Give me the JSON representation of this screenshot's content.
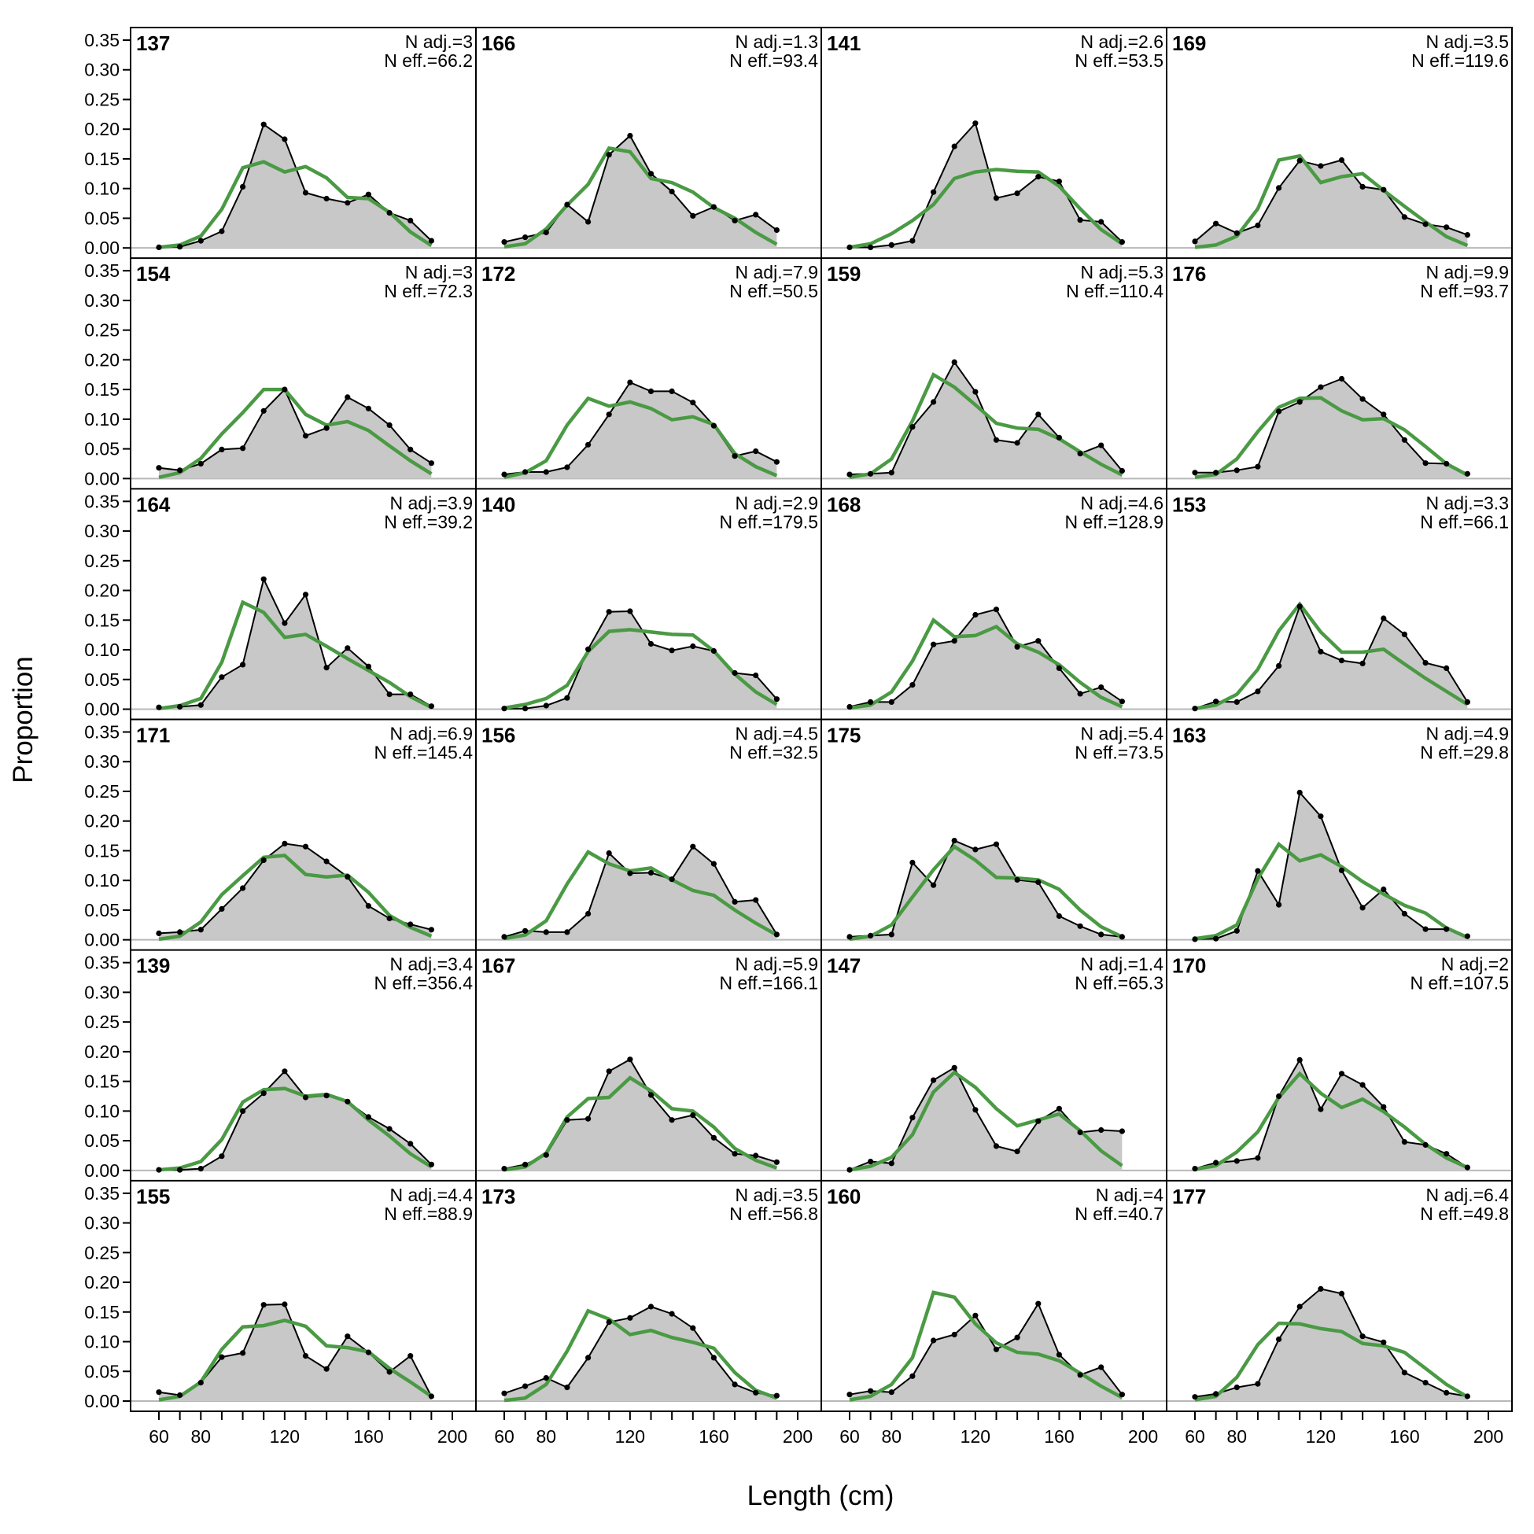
{
  "figure": {
    "xlabel": "Length (cm)",
    "ylabel": "Proportion",
    "observed_color": "#000000",
    "observed_fill": "#c8c8c8",
    "expected_color": "#4a9a44"
  },
  "chart_data": {
    "type": "area",
    "x": [
      60,
      70,
      80,
      90,
      100,
      110,
      120,
      130,
      140,
      150,
      160,
      170,
      180,
      190
    ],
    "xlim": [
      60,
      200
    ],
    "xticks": [
      60,
      80,
      120,
      160,
      200
    ],
    "ylim": [
      0,
      0.35
    ],
    "yticks": [
      "0.00",
      "0.05",
      "0.10",
      "0.15",
      "0.20",
      "0.25",
      "0.30",
      "0.35"
    ],
    "n_adj_label": "N adj.=",
    "n_eff_label": "N eff.=",
    "panels": [
      {
        "id": "137",
        "n_adj": "3",
        "n_eff": "66.2",
        "observed": [
          0.001,
          0.002,
          0.012,
          0.028,
          0.103,
          0.208,
          0.183,
          0.093,
          0.083,
          0.076,
          0.09,
          0.059,
          0.046,
          0.012
        ],
        "expected": [
          0.001,
          0.005,
          0.02,
          0.065,
          0.135,
          0.145,
          0.128,
          0.137,
          0.118,
          0.085,
          0.083,
          0.06,
          0.027,
          0.004
        ]
      },
      {
        "id": "154",
        "n_adj": "3",
        "n_eff": "72.3",
        "observed": [
          0.018,
          0.014,
          0.025,
          0.049,
          0.051,
          0.114,
          0.15,
          0.072,
          0.085,
          0.137,
          0.118,
          0.09,
          0.049,
          0.026
        ],
        "expected": [
          0.002,
          0.01,
          0.034,
          0.075,
          0.111,
          0.15,
          0.15,
          0.108,
          0.09,
          0.096,
          0.081,
          0.055,
          0.03,
          0.008
        ]
      },
      {
        "id": "164",
        "n_adj": "3.9",
        "n_eff": "39.2",
        "observed": [
          0.003,
          0.004,
          0.007,
          0.054,
          0.075,
          0.219,
          0.145,
          0.193,
          0.07,
          0.103,
          0.072,
          0.025,
          0.025,
          0.005
        ],
        "expected": [
          0.001,
          0.006,
          0.018,
          0.079,
          0.18,
          0.163,
          0.121,
          0.126,
          0.106,
          0.085,
          0.065,
          0.045,
          0.021,
          0.003
        ]
      },
      {
        "id": "171",
        "n_adj": "6.9",
        "n_eff": "145.4",
        "observed": [
          0.011,
          0.013,
          0.017,
          0.052,
          0.087,
          0.134,
          0.162,
          0.157,
          0.132,
          0.106,
          0.057,
          0.036,
          0.026,
          0.017
        ],
        "expected": [
          0.001,
          0.006,
          0.03,
          0.076,
          0.108,
          0.139,
          0.142,
          0.11,
          0.106,
          0.109,
          0.08,
          0.041,
          0.021,
          0.006
        ]
      },
      {
        "id": "139",
        "n_adj": "3.4",
        "n_eff": "356.4",
        "observed": [
          0.001,
          0.001,
          0.003,
          0.024,
          0.1,
          0.13,
          0.167,
          0.123,
          0.126,
          0.116,
          0.09,
          0.07,
          0.045,
          0.01
        ],
        "expected": [
          0.001,
          0.004,
          0.015,
          0.052,
          0.115,
          0.136,
          0.138,
          0.125,
          0.128,
          0.116,
          0.085,
          0.058,
          0.028,
          0.006
        ]
      },
      {
        "id": "155",
        "n_adj": "4.4",
        "n_eff": "88.9",
        "observed": [
          0.015,
          0.01,
          0.031,
          0.074,
          0.081,
          0.162,
          0.163,
          0.076,
          0.054,
          0.109,
          0.082,
          0.049,
          0.076,
          0.008
        ],
        "expected": [
          0.002,
          0.008,
          0.032,
          0.087,
          0.125,
          0.127,
          0.136,
          0.126,
          0.093,
          0.09,
          0.083,
          0.055,
          0.032,
          0.008
        ]
      },
      {
        "id": "166",
        "n_adj": "1.3",
        "n_eff": "93.4",
        "observed": [
          0.01,
          0.018,
          0.026,
          0.073,
          0.044,
          0.157,
          0.189,
          0.125,
          0.095,
          0.054,
          0.069,
          0.046,
          0.056,
          0.03
        ],
        "expected": [
          0.002,
          0.007,
          0.032,
          0.072,
          0.107,
          0.168,
          0.162,
          0.117,
          0.11,
          0.094,
          0.068,
          0.05,
          0.026,
          0.006
        ]
      },
      {
        "id": "172",
        "n_adj": "7.9",
        "n_eff": "50.5",
        "observed": [
          0.007,
          0.011,
          0.011,
          0.019,
          0.057,
          0.108,
          0.162,
          0.147,
          0.147,
          0.128,
          0.089,
          0.038,
          0.046,
          0.028
        ],
        "expected": [
          0.002,
          0.01,
          0.03,
          0.09,
          0.135,
          0.122,
          0.129,
          0.118,
          0.099,
          0.104,
          0.091,
          0.042,
          0.02,
          0.005
        ]
      },
      {
        "id": "140",
        "n_adj": "2.9",
        "n_eff": "179.5",
        "observed": [
          0.001,
          0.001,
          0.006,
          0.019,
          0.101,
          0.164,
          0.165,
          0.11,
          0.099,
          0.106,
          0.098,
          0.061,
          0.057,
          0.017
        ],
        "expected": [
          0.002,
          0.008,
          0.018,
          0.04,
          0.097,
          0.131,
          0.134,
          0.13,
          0.126,
          0.125,
          0.098,
          0.059,
          0.029,
          0.008
        ]
      },
      {
        "id": "156",
        "n_adj": "4.5",
        "n_eff": "32.5",
        "observed": [
          0.005,
          0.015,
          0.013,
          0.013,
          0.044,
          0.146,
          0.112,
          0.113,
          0.102,
          0.157,
          0.128,
          0.064,
          0.067,
          0.009
        ],
        "expected": [
          0.002,
          0.008,
          0.032,
          0.094,
          0.148,
          0.128,
          0.116,
          0.121,
          0.101,
          0.083,
          0.075,
          0.05,
          0.028,
          0.008
        ]
      },
      {
        "id": "167",
        "n_adj": "5.9",
        "n_eff": "166.1",
        "observed": [
          0.003,
          0.01,
          0.026,
          0.085,
          0.087,
          0.167,
          0.187,
          0.127,
          0.085,
          0.093,
          0.055,
          0.028,
          0.025,
          0.014
        ],
        "expected": [
          0.001,
          0.006,
          0.029,
          0.09,
          0.121,
          0.123,
          0.156,
          0.134,
          0.104,
          0.1,
          0.073,
          0.037,
          0.017,
          0.004
        ]
      },
      {
        "id": "173",
        "n_adj": "3.5",
        "n_eff": "56.8",
        "observed": [
          0.013,
          0.025,
          0.039,
          0.023,
          0.073,
          0.133,
          0.14,
          0.159,
          0.147,
          0.123,
          0.073,
          0.028,
          0.014,
          0.009
        ],
        "expected": [
          0.001,
          0.005,
          0.028,
          0.084,
          0.152,
          0.138,
          0.112,
          0.119,
          0.107,
          0.099,
          0.089,
          0.048,
          0.018,
          0.005
        ]
      },
      {
        "id": "141",
        "n_adj": "2.6",
        "n_eff": "53.5",
        "observed": [
          0.001,
          0.001,
          0.005,
          0.012,
          0.094,
          0.171,
          0.21,
          0.084,
          0.092,
          0.12,
          0.112,
          0.047,
          0.044,
          0.01
        ],
        "expected": [
          0.001,
          0.007,
          0.024,
          0.046,
          0.073,
          0.117,
          0.128,
          0.132,
          0.129,
          0.128,
          0.104,
          0.066,
          0.031,
          0.007
        ]
      },
      {
        "id": "159",
        "n_adj": "5.3",
        "n_eff": "110.4",
        "observed": [
          0.007,
          0.008,
          0.01,
          0.087,
          0.129,
          0.196,
          0.146,
          0.065,
          0.06,
          0.108,
          0.069,
          0.042,
          0.056,
          0.013
        ],
        "expected": [
          0.002,
          0.008,
          0.033,
          0.097,
          0.175,
          0.154,
          0.124,
          0.093,
          0.085,
          0.083,
          0.067,
          0.045,
          0.024,
          0.006
        ]
      },
      {
        "id": "168",
        "n_adj": "4.6",
        "n_eff": "128.9",
        "observed": [
          0.004,
          0.012,
          0.012,
          0.041,
          0.109,
          0.115,
          0.159,
          0.168,
          0.105,
          0.115,
          0.069,
          0.026,
          0.037,
          0.013
        ],
        "expected": [
          0.002,
          0.007,
          0.029,
          0.081,
          0.15,
          0.122,
          0.124,
          0.139,
          0.11,
          0.096,
          0.075,
          0.045,
          0.02,
          0.004
        ]
      },
      {
        "id": "175",
        "n_adj": "5.4",
        "n_eff": "73.5",
        "observed": [
          0.005,
          0.007,
          0.009,
          0.13,
          0.092,
          0.167,
          0.152,
          0.161,
          0.101,
          0.097,
          0.04,
          0.023,
          0.009,
          0.005
        ],
        "expected": [
          0.001,
          0.006,
          0.025,
          0.072,
          0.118,
          0.157,
          0.134,
          0.105,
          0.104,
          0.101,
          0.085,
          0.05,
          0.022,
          0.005
        ]
      },
      {
        "id": "147",
        "n_adj": "1.4",
        "n_eff": "65.3",
        "observed": [
          0.001,
          0.015,
          0.012,
          0.089,
          0.152,
          0.173,
          0.102,
          0.041,
          0.032,
          0.083,
          0.104,
          0.064,
          0.068,
          0.066
        ],
        "expected": [
          0.001,
          0.007,
          0.022,
          0.06,
          0.132,
          0.165,
          0.14,
          0.104,
          0.075,
          0.085,
          0.095,
          0.067,
          0.033,
          0.008
        ]
      },
      {
        "id": "160",
        "n_adj": "4",
        "n_eff": "40.7",
        "observed": [
          0.011,
          0.017,
          0.015,
          0.042,
          0.102,
          0.112,
          0.144,
          0.087,
          0.107,
          0.164,
          0.078,
          0.044,
          0.057,
          0.011
        ],
        "expected": [
          0.002,
          0.008,
          0.028,
          0.073,
          0.183,
          0.175,
          0.13,
          0.098,
          0.082,
          0.079,
          0.068,
          0.047,
          0.025,
          0.006
        ]
      },
      {
        "id": "169",
        "n_adj": "3.5",
        "n_eff": "119.6",
        "observed": [
          0.011,
          0.041,
          0.025,
          0.038,
          0.101,
          0.147,
          0.138,
          0.148,
          0.103,
          0.098,
          0.052,
          0.04,
          0.035,
          0.022
        ],
        "expected": [
          0.001,
          0.005,
          0.02,
          0.066,
          0.148,
          0.155,
          0.11,
          0.12,
          0.125,
          0.097,
          0.07,
          0.044,
          0.019,
          0.004
        ]
      },
      {
        "id": "176",
        "n_adj": "9.9",
        "n_eff": "93.7",
        "observed": [
          0.01,
          0.01,
          0.014,
          0.02,
          0.113,
          0.129,
          0.154,
          0.168,
          0.134,
          0.108,
          0.065,
          0.026,
          0.025,
          0.008
        ],
        "expected": [
          0.002,
          0.007,
          0.033,
          0.079,
          0.12,
          0.135,
          0.136,
          0.114,
          0.099,
          0.101,
          0.082,
          0.054,
          0.025,
          0.006
        ]
      },
      {
        "id": "153",
        "n_adj": "3.3",
        "n_eff": "66.1",
        "observed": [
          0.001,
          0.013,
          0.012,
          0.03,
          0.073,
          0.173,
          0.097,
          0.082,
          0.077,
          0.153,
          0.126,
          0.078,
          0.069,
          0.012
        ],
        "expected": [
          0.001,
          0.007,
          0.025,
          0.067,
          0.132,
          0.177,
          0.13,
          0.096,
          0.096,
          0.101,
          0.076,
          0.052,
          0.03,
          0.008
        ]
      },
      {
        "id": "163",
        "n_adj": "4.9",
        "n_eff": "29.8",
        "observed": [
          0.001,
          0.002,
          0.015,
          0.116,
          0.059,
          0.248,
          0.208,
          0.117,
          0.054,
          0.085,
          0.044,
          0.018,
          0.018,
          0.006
        ],
        "expected": [
          0.002,
          0.007,
          0.025,
          0.103,
          0.161,
          0.133,
          0.143,
          0.123,
          0.098,
          0.077,
          0.058,
          0.045,
          0.02,
          0.004
        ]
      },
      {
        "id": "170",
        "n_adj": "2",
        "n_eff": "107.5",
        "observed": [
          0.003,
          0.013,
          0.016,
          0.021,
          0.125,
          0.186,
          0.103,
          0.163,
          0.144,
          0.107,
          0.048,
          0.043,
          0.028,
          0.005
        ],
        "expected": [
          0.002,
          0.008,
          0.031,
          0.065,
          0.123,
          0.163,
          0.13,
          0.106,
          0.12,
          0.099,
          0.073,
          0.044,
          0.021,
          0.005
        ]
      },
      {
        "id": "177",
        "n_adj": "6.4",
        "n_eff": "49.8",
        "observed": [
          0.007,
          0.012,
          0.023,
          0.029,
          0.104,
          0.159,
          0.189,
          0.181,
          0.109,
          0.099,
          0.048,
          0.031,
          0.014,
          0.008
        ],
        "expected": [
          0.002,
          0.008,
          0.04,
          0.095,
          0.131,
          0.13,
          0.122,
          0.117,
          0.097,
          0.093,
          0.082,
          0.055,
          0.028,
          0.007
        ]
      }
    ]
  }
}
